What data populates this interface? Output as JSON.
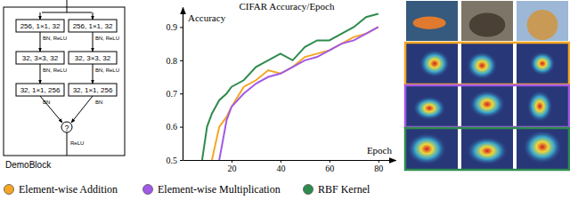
{
  "diagram": {
    "label": "DemoBlock",
    "branches": [
      {
        "layers": [
          "256, 1×1, 32",
          "32, 3×3, 32",
          "32, 1×1, 256"
        ],
        "activations": [
          "BN, ReLU",
          "BN, ReLU",
          "BN"
        ]
      },
      {
        "layers": [
          "256, 1×1, 32",
          "32, 3×3, 32",
          "32, 1×1, 256"
        ],
        "activations": [
          "BN, ReLU",
          "BN, ReLU",
          "BN"
        ]
      }
    ],
    "merge": "?",
    "output_activation": "ReLU"
  },
  "chart_data": {
    "type": "line",
    "title": "CIFAR Accuracy/Epoch",
    "x_label": "Epoch",
    "y_label": "Accuracy",
    "x": [
      8,
      10,
      12,
      15,
      18,
      20,
      25,
      30,
      35,
      40,
      45,
      50,
      55,
      60,
      65,
      70,
      75,
      80
    ],
    "series": [
      {
        "name": "Element-wise Addition",
        "color": "#f5a623",
        "values": [
          null,
          null,
          0.5,
          0.6,
          0.63,
          0.66,
          0.72,
          0.74,
          0.77,
          0.76,
          0.78,
          0.81,
          0.82,
          0.83,
          0.85,
          0.87,
          0.88,
          0.9
        ]
      },
      {
        "name": "Element-wise Multiplication",
        "color": "#a259e6",
        "values": [
          null,
          null,
          null,
          0.5,
          0.62,
          0.66,
          0.7,
          0.73,
          0.75,
          0.76,
          0.78,
          0.8,
          0.81,
          0.83,
          0.85,
          0.86,
          0.88,
          0.9
        ]
      },
      {
        "name": "RBF Kernel",
        "color": "#2e8b4e",
        "values": [
          0.5,
          0.6,
          0.64,
          0.68,
          0.7,
          0.72,
          0.74,
          0.78,
          0.8,
          0.82,
          0.8,
          0.84,
          0.86,
          0.86,
          0.88,
          0.9,
          0.93,
          0.94
        ]
      }
    ],
    "xlim": [
      0,
      87
    ],
    "ylim": [
      0.5,
      0.96
    ],
    "xticks": [
      20,
      40,
      60,
      80
    ],
    "yticks": [
      0.5,
      0.6,
      0.7,
      0.8,
      0.9
    ],
    "grid": false,
    "legend": "bottom"
  }
}
